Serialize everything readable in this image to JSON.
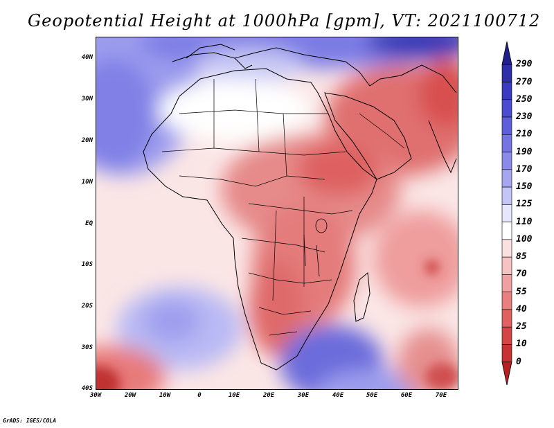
{
  "title": "Geopotential Height at 1000hPa [gpm], VT: 2021100712",
  "credit": "GrADS: IGES/COLA",
  "chart_data": {
    "type": "heatmap",
    "variable": "Geopotential Height at 1000hPa",
    "units": "gpm",
    "valid_time": "2021100712",
    "lon_range": [
      -30,
      75
    ],
    "lat_range": [
      -40,
      45
    ],
    "lat_ticks": [
      "40N",
      "30N",
      "20N",
      "10N",
      "EQ",
      "10S",
      "20S",
      "30S",
      "40S"
    ],
    "lon_ticks": [
      "30W",
      "20W",
      "10W",
      "0",
      "10E",
      "20E",
      "30E",
      "40E",
      "50E",
      "60E",
      "70E"
    ],
    "colorbar": {
      "levels": [
        "290",
        "270",
        "250",
        "230",
        "210",
        "190",
        "170",
        "150",
        "125",
        "110",
        "100",
        "85",
        "70",
        "55",
        "40",
        "25",
        "10",
        "0"
      ],
      "colors": [
        "#20208c",
        "#2e2ea8",
        "#3b3bbf",
        "#4c4cd0",
        "#5f5fdb",
        "#7474e3",
        "#8a8aea",
        "#a5a5f0",
        "#c4c4f6",
        "#e6e6fc",
        "#ffffff",
        "#fbe0e0",
        "#f6c2c2",
        "#f0a0a0",
        "#e88080",
        "#e06060",
        "#d64545",
        "#c83232",
        "#b52020"
      ]
    }
  }
}
